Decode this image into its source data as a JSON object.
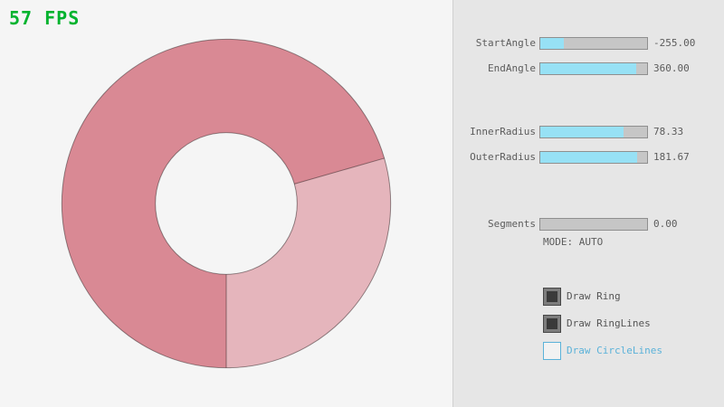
{
  "fps": "57 FPS",
  "panel": {
    "sliders": [
      {
        "label": "StartAngle",
        "value": "-255.00",
        "fill_pct": 21.7
      },
      {
        "label": "EndAngle",
        "value": "360.00",
        "fill_pct": 90.0
      },
      {
        "label": "InnerRadius",
        "value": "78.33",
        "fill_pct": 78.3
      },
      {
        "label": "OuterRadius",
        "value": "181.67",
        "fill_pct": 90.8
      },
      {
        "label": "Segments",
        "value": "0.00",
        "fill_pct": 0.0
      }
    ],
    "mode_text": "MODE: AUTO",
    "checkboxes": [
      {
        "label": "Draw Ring",
        "checked": true
      },
      {
        "label": "Draw RingLines",
        "checked": true
      },
      {
        "label": "Draw CircleLines",
        "checked": false
      }
    ]
  },
  "chart_data": {
    "type": "ring",
    "ring": {
      "start_angle": -255,
      "end_angle": 360,
      "inner_radius": 78.33,
      "outer_radius": 181.67,
      "segments": 0,
      "center": [
        250,
        225
      ],
      "fill_color_overlap": "#d98994",
      "fill_color_single": "#e5b5bc",
      "outline_color": "rgba(0,0,0,0.4)"
    }
  },
  "colors": {
    "accent_fill": "#97e1f5",
    "fps_green": "#00b32e",
    "focus_blue": "#5bb2d9"
  }
}
